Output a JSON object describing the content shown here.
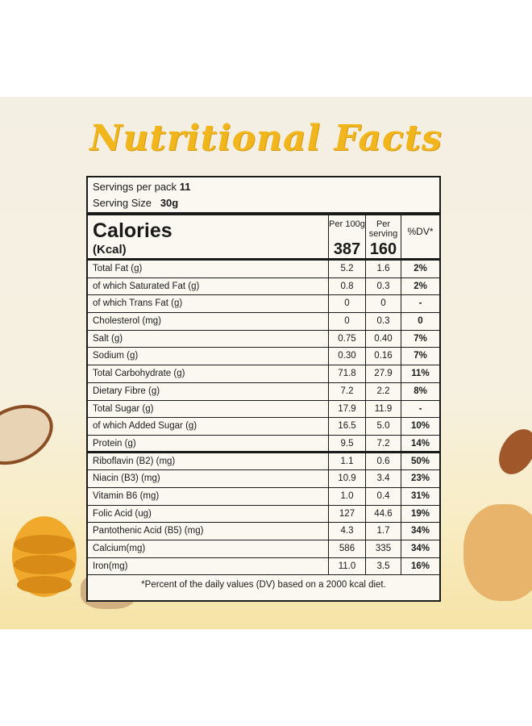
{
  "title": "Nutritional Facts",
  "servings": {
    "label": "Servings per pack",
    "value": "11"
  },
  "serving_size": {
    "label": "Serving Size",
    "value": "30g"
  },
  "calories": {
    "label": "Calories",
    "unit": "(Kcal)",
    "col1_header": "Per 100g",
    "col2_header": "Per serving",
    "col3_header": "%DV*",
    "per100": "387",
    "perserving": "160"
  },
  "rows": [
    {
      "name": "Total Fat (g)",
      "per100": "5.2",
      "perserving": "1.6",
      "dv": "2%"
    },
    {
      "name": " of which Saturated Fat (g)",
      "per100": "0.8",
      "perserving": "0.3",
      "dv": "2%"
    },
    {
      "name": " of which Trans Fat (g)",
      "per100": "0",
      "perserving": "0",
      "dv": "-"
    },
    {
      "name": "Cholesterol (mg)",
      "per100": "0",
      "perserving": "0.3",
      "dv": "0"
    },
    {
      "name": "Salt (g)",
      "per100": "0.75",
      "perserving": "0.40",
      "dv": "7%"
    },
    {
      "name": "Sodium (g)",
      "per100": "0.30",
      "perserving": "0.16",
      "dv": "7%"
    },
    {
      "name": "Total Carbohydrate (g)",
      "per100": "71.8",
      "perserving": "27.9",
      "dv": "11%"
    },
    {
      "name": "Dietary Fibre (g)",
      "per100": "7.2",
      "perserving": "2.2",
      "dv": "8%"
    },
    {
      "name": "Total Sugar (g)",
      "per100": "17.9",
      "perserving": "11.9",
      "dv": "-"
    },
    {
      "name": " of which Added Sugar (g)",
      "per100": "16.5",
      "perserving": "5.0",
      "dv": "10%"
    },
    {
      "name": "Protein (g)",
      "per100": "9.5",
      "perserving": "7.2",
      "dv": "14%"
    },
    {
      "name": "Riboflavin (B2) (mg)",
      "per100": "1.1",
      "perserving": "0.6",
      "dv": "50%"
    },
    {
      "name": "Niacin (B3) (mg)",
      "per100": "10.9",
      "perserving": "3.4",
      "dv": "23%"
    },
    {
      "name": "Vitamin B6 (mg)",
      "per100": "1.0",
      "perserving": "0.4",
      "dv": "31%"
    },
    {
      "name": "Folic Acid (ug)",
      "per100": "127",
      "perserving": "44.6",
      "dv": "19%"
    },
    {
      "name": "Pantothenic Acid (B5) (mg)",
      "per100": "4.3",
      "perserving": "1.7",
      "dv": "34%"
    },
    {
      "name": "Calcium(mg)",
      "per100": "586",
      "perserving": "335",
      "dv": "34%"
    },
    {
      "name": "Iron(mg)",
      "per100": "11.0",
      "perserving": "3.5",
      "dv": "16%"
    }
  ],
  "footnote": "*Percent of the daily values (DV) based on a 2000 kcal diet.",
  "colors": {
    "title": "#f2b61d",
    "border": "#1a1a1a"
  }
}
